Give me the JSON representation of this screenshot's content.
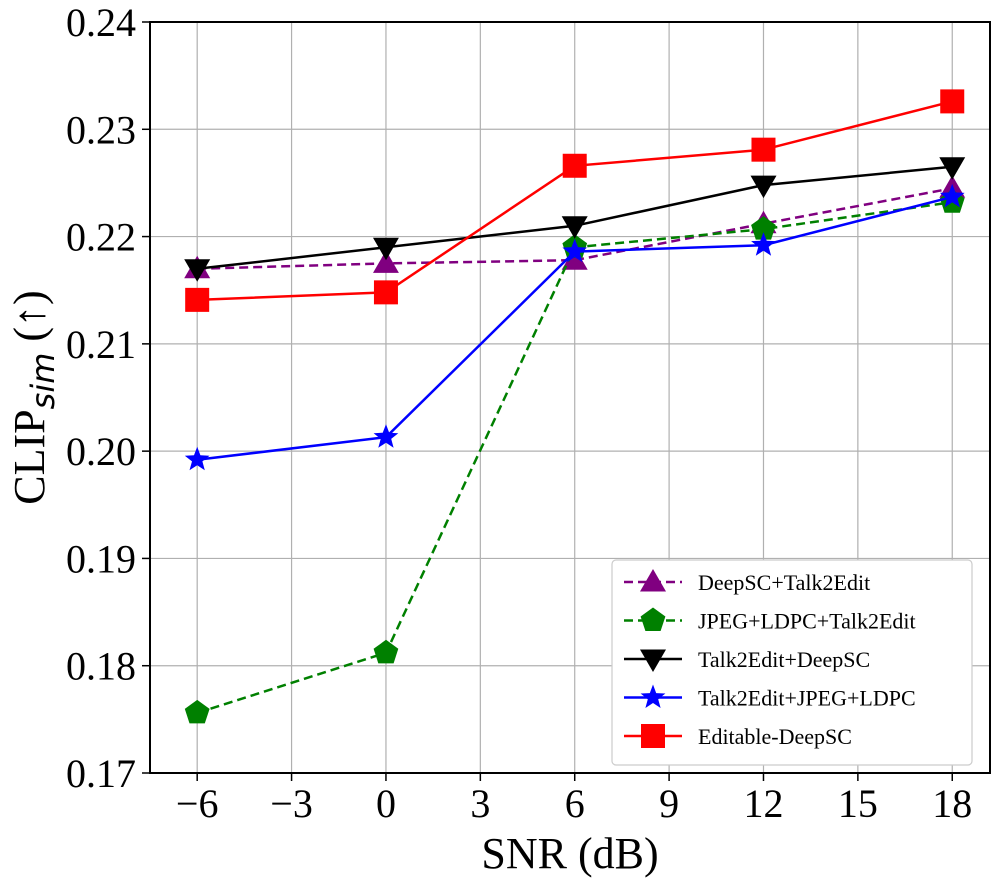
{
  "chart_data": {
    "type": "line",
    "x": [
      -6,
      0,
      6,
      12,
      18
    ],
    "xlabel": "SNR (dB)",
    "ylabel_main": "CLIP",
    "ylabel_sub": "sim",
    "ylabel_suffix": " (↑)",
    "xlim": [
      -7.5,
      19.2
    ],
    "ylim": [
      0.17,
      0.24
    ],
    "xticks": [
      -6,
      -3,
      0,
      3,
      6,
      9,
      12,
      15,
      18
    ],
    "xtick_labels": [
      "−6",
      "−3",
      "0",
      "3",
      "6",
      "9",
      "12",
      "15",
      "18"
    ],
    "yticks": [
      0.17,
      0.18,
      0.19,
      0.2,
      0.21,
      0.22,
      0.23,
      0.24
    ],
    "ytick_labels": [
      "0.17",
      "0.18",
      "0.19",
      "0.20",
      "0.21",
      "0.22",
      "0.23",
      "0.24"
    ],
    "grid": true,
    "legend_position": "lower-right",
    "series": [
      {
        "name": "DeepSC+Talk2Edit",
        "color": "#800080",
        "dashed": true,
        "marker": "triangle-up",
        "values": [
          0.217,
          0.2175,
          0.2178,
          0.2212,
          0.2245
        ]
      },
      {
        "name": "JPEG+LDPC+Talk2Edit",
        "color": "#008000",
        "dashed": true,
        "marker": "pentagon",
        "values": [
          0.1756,
          0.1812,
          0.219,
          0.2207,
          0.2232
        ]
      },
      {
        "name": "Talk2Edit+DeepSC",
        "color": "#000000",
        "dashed": false,
        "marker": "triangle-down",
        "values": [
          0.217,
          0.219,
          0.221,
          0.2248,
          0.2265
        ]
      },
      {
        "name": "Talk2Edit+JPEG+LDPC",
        "color": "#0000ff",
        "dashed": false,
        "marker": "star",
        "values": [
          0.1992,
          0.2013,
          0.2186,
          0.2192,
          0.2237
        ]
      },
      {
        "name": "Editable-DeepSC",
        "color": "#ff0000",
        "dashed": false,
        "marker": "square",
        "values": [
          0.2141,
          0.2148,
          0.2266,
          0.2281,
          0.2326
        ]
      }
    ]
  }
}
